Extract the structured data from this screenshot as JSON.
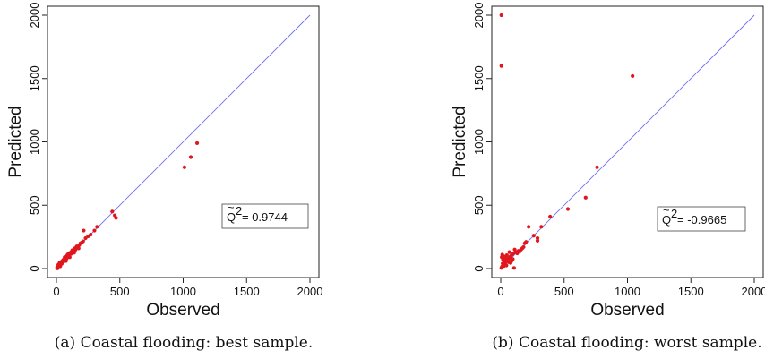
{
  "chart_data": [
    {
      "type": "scatter",
      "caption": "(a) Coastal flooding: best sample.",
      "xlabel": "Observed",
      "ylabel": "Predicted",
      "xlim": [
        0,
        2000
      ],
      "ylim": [
        0,
        2000
      ],
      "xticks": [
        0,
        500,
        1000,
        1500,
        2000
      ],
      "yticks": [
        0,
        500,
        1000,
        1500,
        2000
      ],
      "annotation": "= 0.9744",
      "annotation_symbol": "Q",
      "reference_line": {
        "from": [
          0,
          0
        ],
        "to": [
          2000,
          2000
        ],
        "color": "#6f6ff0"
      },
      "point_color": "#e0161e",
      "points": [
        [
          5,
          8
        ],
        [
          12,
          15
        ],
        [
          20,
          22
        ],
        [
          28,
          25
        ],
        [
          35,
          40
        ],
        [
          42,
          38
        ],
        [
          50,
          55
        ],
        [
          60,
          58
        ],
        [
          70,
          75
        ],
        [
          80,
          78
        ],
        [
          90,
          95
        ],
        [
          100,
          98
        ],
        [
          110,
          115
        ],
        [
          120,
          118
        ],
        [
          135,
          140
        ],
        [
          150,
          148
        ],
        [
          165,
          170
        ],
        [
          180,
          185
        ],
        [
          200,
          205
        ],
        [
          210,
          215
        ],
        [
          230,
          240
        ],
        [
          250,
          255
        ],
        [
          270,
          268
        ],
        [
          300,
          300
        ],
        [
          320,
          330
        ],
        [
          215,
          300
        ],
        [
          440,
          450
        ],
        [
          460,
          420
        ],
        [
          470,
          400
        ],
        [
          1010,
          800
        ],
        [
          1060,
          880
        ],
        [
          1110,
          990
        ],
        [
          15,
          30
        ],
        [
          25,
          45
        ],
        [
          45,
          60
        ],
        [
          55,
          70
        ],
        [
          65,
          90
        ],
        [
          85,
          105
        ],
        [
          95,
          120
        ],
        [
          115,
          130
        ],
        [
          125,
          145
        ],
        [
          145,
          160
        ],
        [
          160,
          175
        ],
        [
          190,
          200
        ],
        [
          8,
          2
        ],
        [
          30,
          18
        ],
        [
          75,
          60
        ],
        [
          105,
          90
        ],
        [
          140,
          125
        ],
        [
          175,
          160
        ]
      ]
    },
    {
      "type": "scatter",
      "caption": "(b) Coastal flooding: worst sample.",
      "xlabel": "Observed",
      "ylabel": "Predicted",
      "xlim": [
        0,
        2000
      ],
      "ylim": [
        0,
        2000
      ],
      "xticks": [
        0,
        500,
        1000,
        1500,
        2000
      ],
      "yticks": [
        0,
        500,
        1000,
        1500,
        2000
      ],
      "annotation": "= -0.9665",
      "annotation_symbol": "Q",
      "reference_line": {
        "from": [
          0,
          0
        ],
        "to": [
          2000,
          2000
        ],
        "color": "#6f6ff0"
      },
      "point_color": "#e0161e",
      "points": [
        [
          5,
          2000
        ],
        [
          5,
          1600
        ],
        [
          1040,
          1520
        ],
        [
          760,
          800
        ],
        [
          670,
          560
        ],
        [
          530,
          470
        ],
        [
          390,
          410
        ],
        [
          320,
          330
        ],
        [
          290,
          240
        ],
        [
          290,
          220
        ],
        [
          260,
          260
        ],
        [
          220,
          330
        ],
        [
          200,
          210
        ],
        [
          180,
          170
        ],
        [
          160,
          150
        ],
        [
          140,
          140
        ],
        [
          120,
          130
        ],
        [
          110,
          150
        ],
        [
          100,
          120
        ],
        [
          90,
          110
        ],
        [
          80,
          100
        ],
        [
          70,
          90
        ],
        [
          60,
          80
        ],
        [
          50,
          70
        ],
        [
          40,
          60
        ],
        [
          30,
          50
        ],
        [
          20,
          30
        ],
        [
          10,
          15
        ],
        [
          5,
          5
        ],
        [
          15,
          40
        ],
        [
          25,
          20
        ],
        [
          35,
          45
        ],
        [
          45,
          25
        ],
        [
          55,
          65
        ],
        [
          65,
          50
        ],
        [
          75,
          85
        ],
        [
          85,
          60
        ],
        [
          95,
          75
        ],
        [
          105,
          5
        ],
        [
          130,
          120
        ],
        [
          150,
          135
        ],
        [
          170,
          160
        ],
        [
          190,
          200
        ],
        [
          8,
          90
        ],
        [
          12,
          110
        ],
        [
          18,
          70
        ],
        [
          28,
          95
        ],
        [
          38,
          85
        ],
        [
          48,
          105
        ],
        [
          58,
          55
        ],
        [
          68,
          130
        ],
        [
          78,
          45
        ]
      ]
    }
  ]
}
